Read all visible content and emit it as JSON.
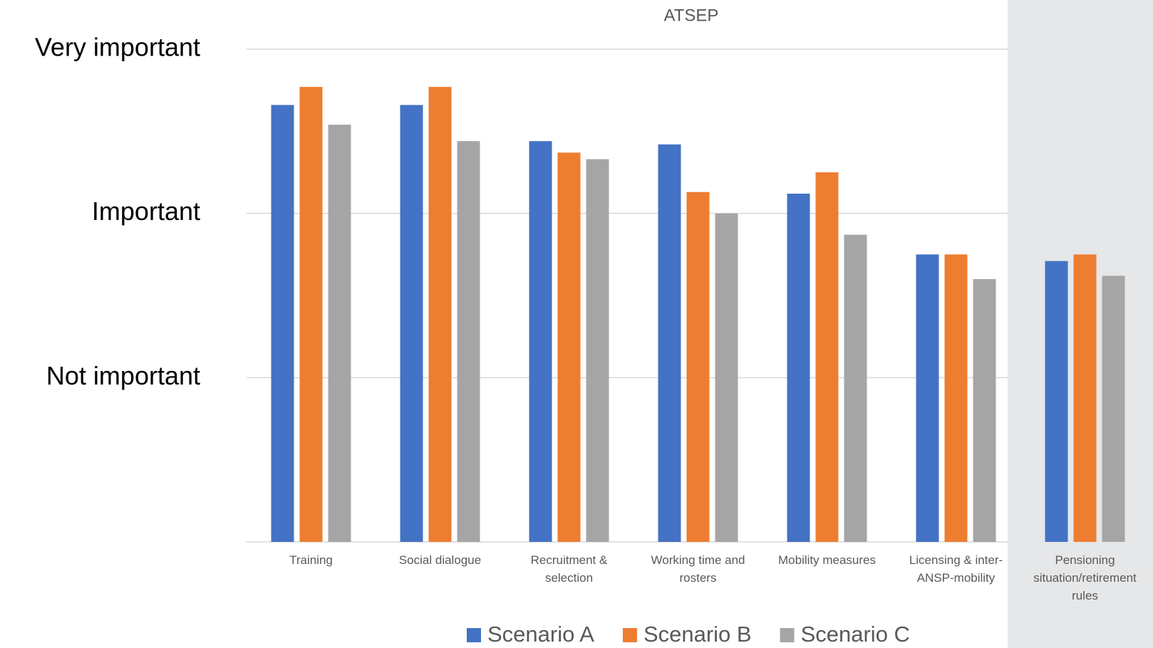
{
  "chart_data": {
    "type": "bar",
    "title": "ATSEP",
    "categories": [
      "Training",
      "Social dialogue",
      "Recruitment & selection",
      "Working time and rosters",
      "Mobility measures",
      "Licensing & inter-ANSP-mobility",
      "Pensioning situation/retirement rules"
    ],
    "series": [
      {
        "name": "Scenario A",
        "color": "#4472c4",
        "values": [
          2.66,
          2.66,
          2.44,
          2.42,
          2.12,
          1.75,
          1.71
        ]
      },
      {
        "name": "Scenario B",
        "color": "#ed7d31",
        "values": [
          2.77,
          2.77,
          2.37,
          2.13,
          2.25,
          1.75,
          1.75
        ]
      },
      {
        "name": "Scenario C",
        "color": "#a5a5a5",
        "values": [
          2.54,
          2.44,
          2.33,
          2.0,
          1.87,
          1.6,
          1.62
        ]
      }
    ],
    "ylim": [
      0,
      3
    ],
    "yticks": [
      {
        "value": 1,
        "label": "Not important"
      },
      {
        "value": 2,
        "label": "Important"
      },
      {
        "value": 3,
        "label": "Very important"
      }
    ],
    "grid": true
  }
}
